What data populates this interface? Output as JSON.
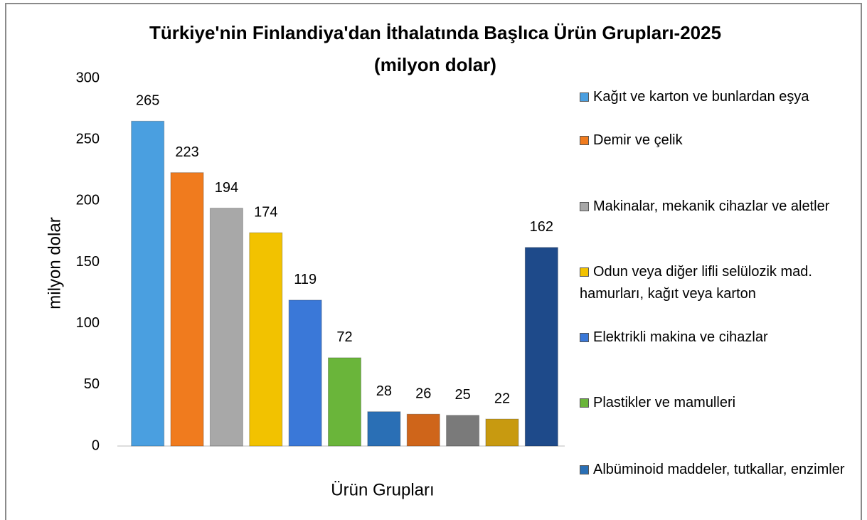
{
  "chart_data": {
    "type": "bar",
    "title": "Türkiye'nin Finlandiya'dan İthalatında Başlıca Ürün Grupları-2025",
    "subtitle": "(milyon dolar)",
    "y_label": "milyon dolar",
    "x_label": "Ürün Grupları",
    "series": [
      {
        "name": "Kağıt ve karton ve bunlardan eşya",
        "color": "#4a9fe0",
        "values": [
          265
        ]
      },
      {
        "name": "Demir ve çelik",
        "color": "#f07b1e",
        "values": [
          223
        ]
      },
      {
        "name": "Makinalar, mekanik cihazlar ve aletler",
        "color": "#a8a8a8",
        "values": [
          194
        ]
      },
      {
        "name": "Odun veya diğer lifli selülozik mad. hamurları, kağıt veya karton",
        "color": "#f2c200",
        "values": [
          174
        ]
      },
      {
        "name": "Elektrikli makina ve cihazlar",
        "color": "#3a78d8",
        "values": [
          119
        ]
      },
      {
        "name": "Plastikler ve mamulleri",
        "color": "#6ab53a",
        "values": [
          72
        ]
      },
      {
        "name": "Albüminoid maddeler, tutkallar, enzimler",
        "color": "#2a6fb5",
        "values": [
          28
        ]
      },
      {
        "name": null,
        "color": "#cf651a",
        "values": [
          26
        ]
      },
      {
        "name": null,
        "color": "#7a7a7a",
        "values": [
          25
        ]
      },
      {
        "name": null,
        "color": "#c89a10",
        "values": [
          22
        ]
      },
      {
        "name": null,
        "color": "#1e4a8a",
        "values": [
          162
        ]
      }
    ],
    "ylim": [
      0,
      300
    ],
    "yticks": [
      0,
      50,
      100,
      150,
      200,
      250,
      300
    ],
    "grid": false,
    "legend": "right"
  }
}
